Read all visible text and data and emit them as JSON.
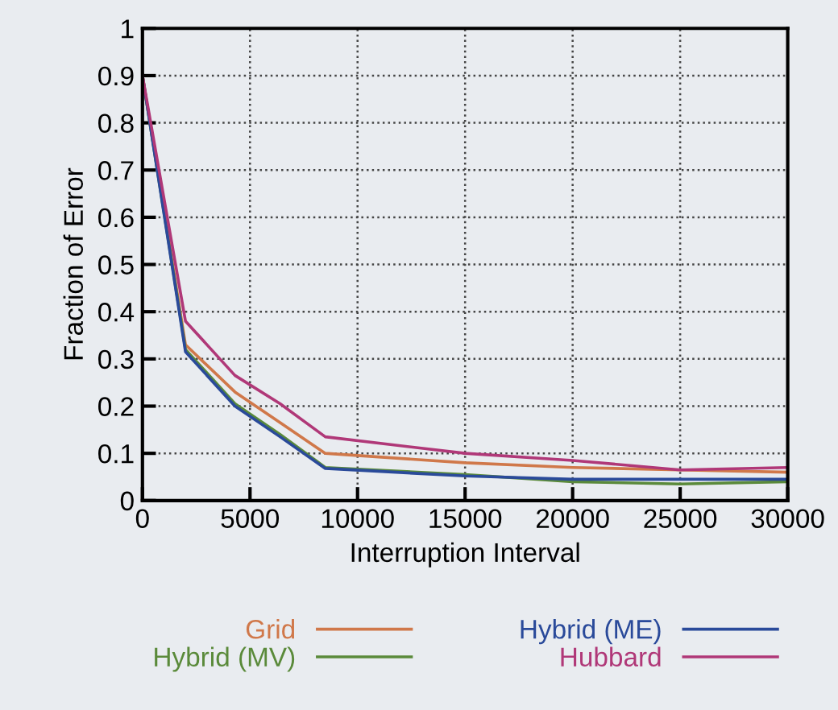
{
  "chart_data": {
    "type": "line",
    "xlabel": "Interruption Interval",
    "ylabel": "Fraction of Error",
    "x": [
      0,
      2000,
      4300,
      6400,
      8500,
      15000,
      20000,
      25000,
      30000
    ],
    "series": [
      {
        "name": "Grid",
        "color": "#d0784a",
        "values": [
          0.9,
          0.33,
          0.23,
          0.165,
          0.1,
          0.08,
          0.07,
          0.065,
          0.06
        ]
      },
      {
        "name": "Hybrid (MV)",
        "color": "#5a8a3a",
        "values": [
          0.9,
          0.32,
          0.205,
          0.14,
          0.07,
          0.055,
          0.04,
          0.035,
          0.04
        ]
      },
      {
        "name": "Hybrid (ME)",
        "color": "#2a4a9a",
        "values": [
          0.9,
          0.315,
          0.2,
          0.135,
          0.068,
          0.052,
          0.045,
          0.045,
          0.045
        ]
      },
      {
        "name": "Hubbard",
        "color": "#b03878",
        "values": [
          0.9,
          0.38,
          0.265,
          0.205,
          0.135,
          0.1,
          0.085,
          0.065,
          0.07
        ]
      }
    ],
    "xlim": [
      0,
      30000
    ],
    "xticks": [
      0,
      5000,
      10000,
      15000,
      20000,
      25000,
      30000
    ],
    "ylim": [
      0,
      1
    ],
    "yticks": [
      0,
      0.1,
      0.2,
      0.3,
      0.4,
      0.5,
      0.6,
      0.7,
      0.8,
      0.9,
      1
    ],
    "grid": true,
    "legend": "bottom",
    "marker": "none",
    "line_style": "solid"
  }
}
